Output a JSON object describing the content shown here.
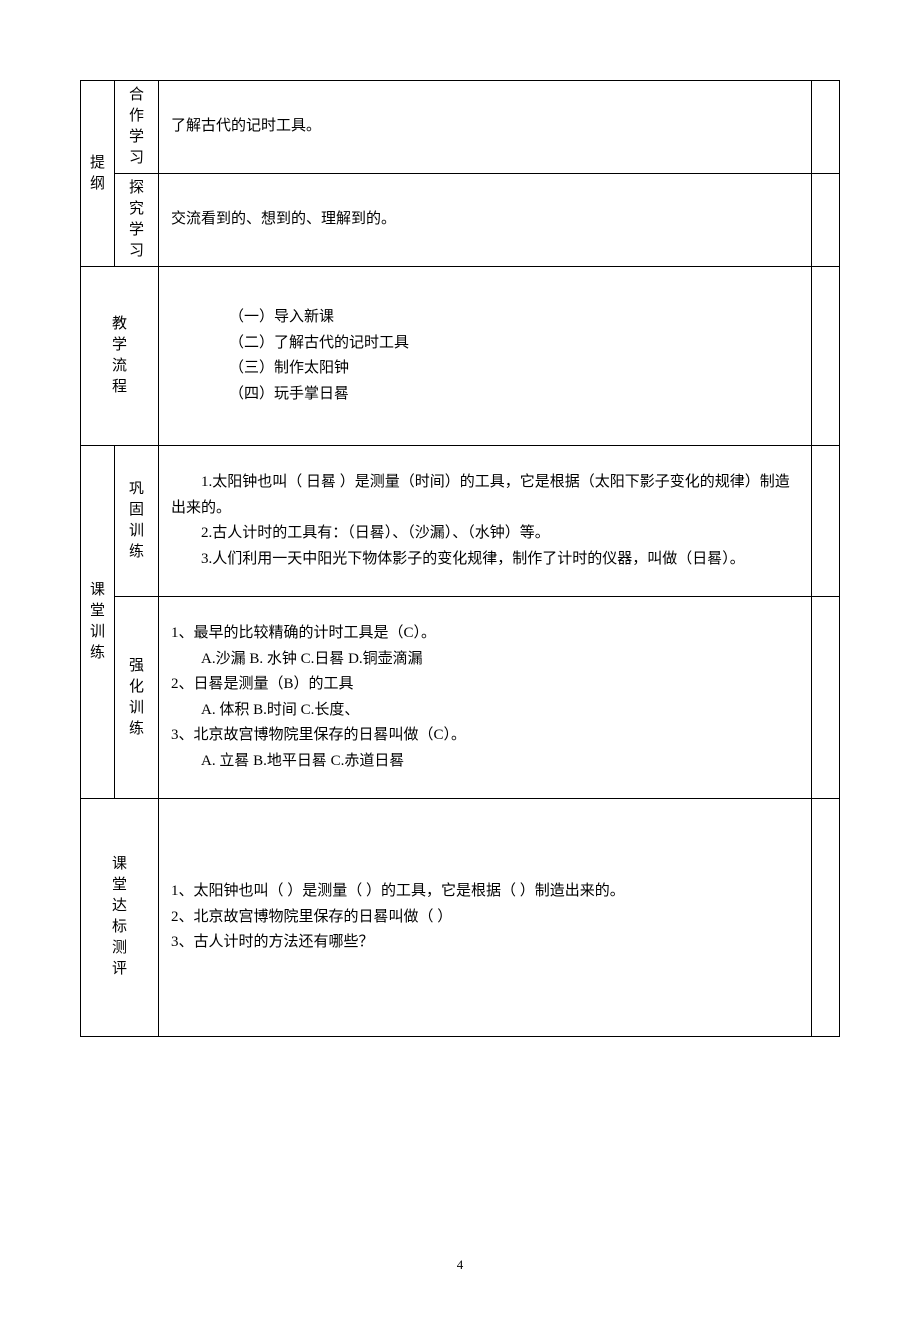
{
  "headers": {
    "outline": "提纲",
    "cooperative": "合作学习",
    "inquiry": "探究学习",
    "teachingFlow": "教学流程",
    "classTraining": "课堂训练",
    "consolidation": "巩固训练",
    "intensive": "强化训练",
    "assessment": "课堂达标测评"
  },
  "outline": {
    "cooperativeContent": "了解古代的记时工具。",
    "inquiryContent": "交流看到的、想到的、理解到的。"
  },
  "teachingFlow": {
    "item1": "（一）导入新课",
    "item2": "（二）了解古代的记时工具",
    "item3": "（三）制作太阳钟",
    "item4": "（四）玩手掌日晷"
  },
  "consolidation": {
    "item1": "1.太阳钟也叫（ 日晷 ）是测量（时间）的工具，它是根据（太阳下影子变化的规律）制造出来的。",
    "item2": "2.古人计时的工具有：（日晷）、（沙漏）、（水钟）等。",
    "item3": "3.人们利用一天中阳光下物体影子的变化规律，制作了计时的仪器，叫做（日晷）。"
  },
  "intensive": {
    "q1": "1、最早的比较精确的计时工具是（C）。",
    "q1options": "A.沙漏      B. 水钟      C.日晷       D.铜壶滴漏",
    "q2": "2、日晷是测量（B）的工具",
    "q2options": "A. 体积   B.时间   C.长度、",
    "q3": "3、北京故宫博物院里保存的日晷叫做（C）。",
    "q3options": "A. 立晷    B.地平日晷    C.赤道日晷"
  },
  "assessment": {
    "item1": "1、太阳钟也叫（          ）是测量（          ）的工具，它是根据（          ）制造出来的。",
    "item2": "2、北京故宫博物院里保存的日晷叫做（            ）",
    "item3": "3、古人计时的方法还有哪些？"
  },
  "pageNumber": "4"
}
